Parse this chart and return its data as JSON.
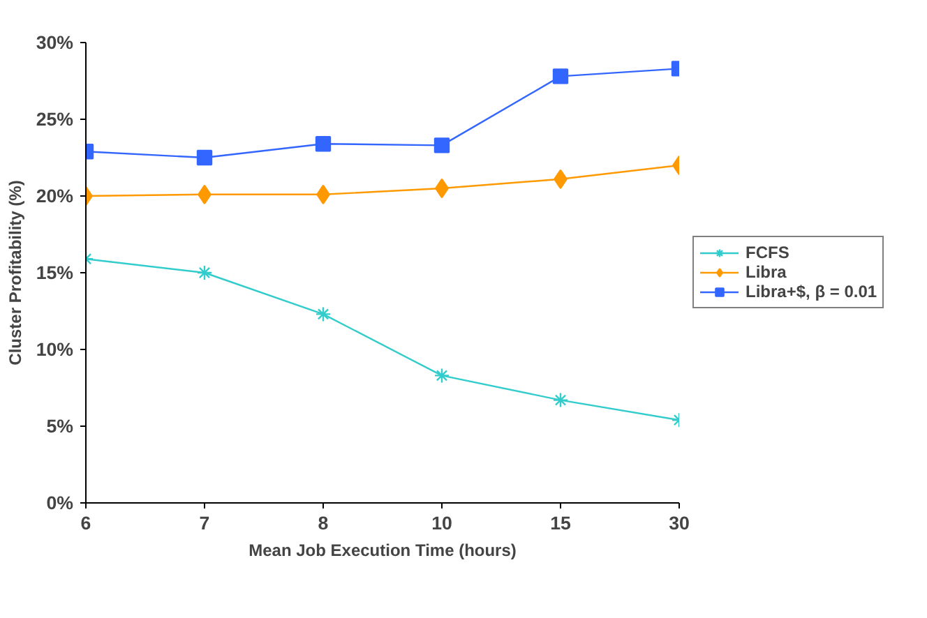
{
  "chart_data": {
    "type": "line",
    "xlabel": "Mean Job Execution Time (hours)",
    "ylabel": "Cluster Profitability (%)",
    "categories": [
      "6",
      "7",
      "8",
      "10",
      "15",
      "30"
    ],
    "ylim": [
      0,
      30
    ],
    "yticks": [
      {
        "value": 0,
        "label": "0%"
      },
      {
        "value": 5,
        "label": "5%"
      },
      {
        "value": 10,
        "label": "10%"
      },
      {
        "value": 15,
        "label": "15%"
      },
      {
        "value": 20,
        "label": "20%"
      },
      {
        "value": 25,
        "label": "25%"
      },
      {
        "value": 30,
        "label": "30%"
      }
    ],
    "grid": false,
    "legend": "right",
    "line_style": "solid",
    "series": [
      {
        "name": "FCFS",
        "color": "#33cccc",
        "marker": "cross",
        "values": [
          15.9,
          15.0,
          12.3,
          8.3,
          6.7,
          5.4
        ]
      },
      {
        "name": "Libra",
        "color": "#ff9900",
        "marker": "diamond",
        "values": [
          20.0,
          20.1,
          20.1,
          20.5,
          21.1,
          22.0
        ]
      },
      {
        "name": "Libra+$, β = 0.01",
        "color": "#3366ff",
        "marker": "square",
        "values": [
          22.9,
          22.5,
          23.4,
          23.3,
          27.8,
          28.3
        ]
      }
    ]
  }
}
